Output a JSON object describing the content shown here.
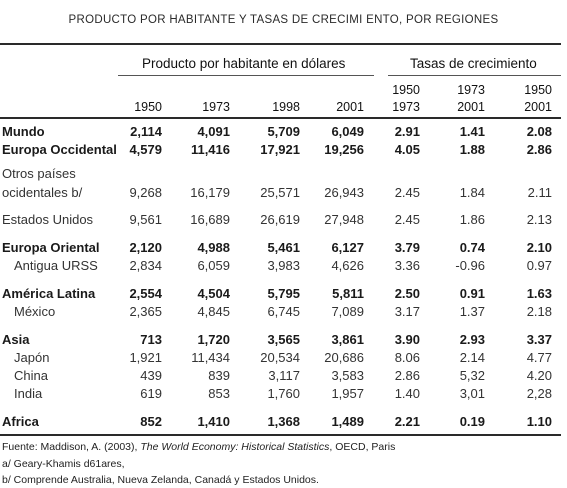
{
  "title": "PRODUCTO POR HABITANTE Y TASAS DE CRECIMI ENTO, POR REGIONES",
  "header": {
    "group_gdp": "Producto por habitante en dólares",
    "group_growth": "Tasas de crecimiento",
    "years": [
      "1950",
      "1973",
      "1998",
      "2001"
    ],
    "growth_periods": [
      {
        "from": "1950",
        "to": "1973"
      },
      {
        "from": "1973",
        "to": "2001"
      },
      {
        "from": "1950",
        "to": "2001"
      }
    ]
  },
  "rows": [
    {
      "label": "Mundo",
      "bold": true,
      "indent": false,
      "values": [
        "2,114",
        "4,091",
        "5,709",
        "6,049",
        "2.91",
        "1.41",
        "2.08"
      ]
    },
    {
      "label": "Europa Occidental",
      "bold": true,
      "indent": false,
      "values": [
        "4,579",
        "11,416",
        "17,921",
        "19,256",
        "4.05",
        "1.88",
        "2.86"
      ]
    },
    {
      "label": "Otros países",
      "label2": "ocidentales b/",
      "bold": false,
      "indent": false,
      "values": [
        "9,268",
        "16,179",
        "25,571",
        "26,943",
        "2.45",
        "1.84",
        "2.11"
      ]
    },
    {
      "label": "Estados Unidos",
      "bold": false,
      "indent": false,
      "values": [
        "9,561",
        "16,689",
        "26,619",
        "27,948",
        "2.45",
        "1.86",
        "2.13"
      ]
    },
    {
      "label": "Europa Oriental",
      "bold": true,
      "indent": false,
      "values": [
        "2,120",
        "4,988",
        "5,461",
        "6,127",
        "3.79",
        "0.74",
        "2.10"
      ]
    },
    {
      "label": "Antigua URSS",
      "bold": false,
      "indent": true,
      "values": [
        "2,834",
        "6,059",
        "3,983",
        "4,626",
        "3.36",
        "-0.96",
        "0.97"
      ]
    },
    {
      "label": "América Latina",
      "bold": true,
      "indent": false,
      "values": [
        "2,554",
        "4,504",
        "5,795",
        "5,811",
        "2.50",
        "0.91",
        "1.63"
      ]
    },
    {
      "label": "México",
      "bold": false,
      "indent": true,
      "values": [
        "2,365",
        "4,845",
        "6,745",
        "7,089",
        "3.17",
        "1.37",
        "2.18"
      ]
    },
    {
      "label": "Asia",
      "bold": true,
      "indent": false,
      "values": [
        "713",
        "1,720",
        "3,565",
        "3,861",
        "3.90",
        "2.93",
        "3.37"
      ]
    },
    {
      "label": "Japón",
      "bold": false,
      "indent": true,
      "values": [
        "1,921",
        "11,434",
        "20,534",
        "20,686",
        "8.06",
        "2.14",
        "4.77"
      ]
    },
    {
      "label": "China",
      "bold": false,
      "indent": true,
      "values": [
        "439",
        "839",
        "3,117",
        "3,583",
        "2.86",
        "5,32",
        "4.20"
      ]
    },
    {
      "label": "India",
      "bold": false,
      "indent": true,
      "values": [
        "619",
        "853",
        "1,760",
        "1,957",
        "1.40",
        "3,01",
        "2,28"
      ]
    },
    {
      "label": "Africa",
      "bold": true,
      "indent": false,
      "values": [
        "852",
        "1,410",
        "1,368",
        "1,489",
        "2.21",
        "0.19",
        "1.10"
      ]
    }
  ],
  "footnotes": {
    "source_prefix": "Fuente: Maddison, A. (2003), ",
    "source_title": "The World Economy: Historical Statistics",
    "source_suffix": ", OECD, Paris",
    "note_a": "a/ Geary-Khamis d61ares,",
    "note_b": "b/ Comprende Australia, Nueva Zelanda, Canadá y Estados Unidos."
  }
}
